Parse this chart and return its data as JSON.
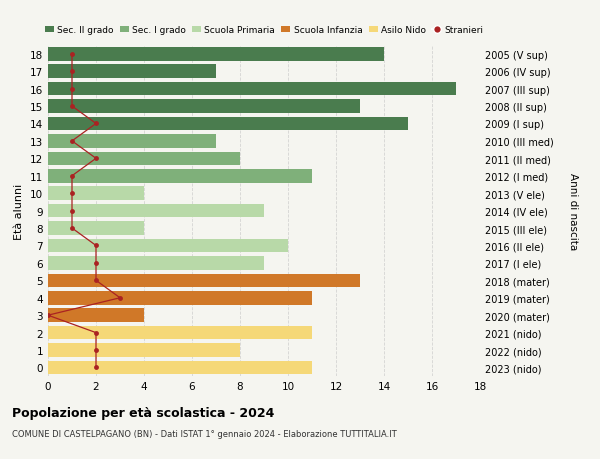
{
  "ages": [
    0,
    1,
    2,
    3,
    4,
    5,
    6,
    7,
    8,
    9,
    10,
    11,
    12,
    13,
    14,
    15,
    16,
    17,
    18
  ],
  "right_labels": [
    "2023 (nido)",
    "2022 (nido)",
    "2021 (nido)",
    "2020 (mater)",
    "2019 (mater)",
    "2018 (mater)",
    "2017 (I ele)",
    "2016 (II ele)",
    "2015 (III ele)",
    "2014 (IV ele)",
    "2013 (V ele)",
    "2012 (I med)",
    "2011 (II med)",
    "2010 (III med)",
    "2009 (I sup)",
    "2008 (II sup)",
    "2007 (III sup)",
    "2006 (IV sup)",
    "2005 (V sup)"
  ],
  "bar_values": [
    11,
    8,
    11,
    4,
    11,
    13,
    9,
    10,
    4,
    9,
    4,
    11,
    8,
    7,
    15,
    13,
    17,
    7,
    14
  ],
  "bar_colors": [
    "#f5d878",
    "#f5d878",
    "#f5d878",
    "#d07828",
    "#d07828",
    "#d07828",
    "#b8d9a8",
    "#b8d9a8",
    "#b8d9a8",
    "#b8d9a8",
    "#b8d9a8",
    "#7fb07a",
    "#7fb07a",
    "#7fb07a",
    "#4a7c4e",
    "#4a7c4e",
    "#4a7c4e",
    "#4a7c4e",
    "#4a7c4e"
  ],
  "stranieri_values": [
    2,
    2,
    2,
    0,
    3,
    2,
    2,
    2,
    1,
    1,
    1,
    1,
    2,
    1,
    2,
    1,
    1,
    1,
    1
  ],
  "legend_labels": [
    "Sec. II grado",
    "Sec. I grado",
    "Scuola Primaria",
    "Scuola Infanzia",
    "Asilo Nido",
    "Stranieri"
  ],
  "legend_colors": [
    "#4a7c4e",
    "#7fb07a",
    "#b8d9a8",
    "#d07828",
    "#f5d878",
    "#aa2222"
  ],
  "ylabel_left": "Età alunni",
  "ylabel_right": "Anni di nascita",
  "xlim": [
    0,
    18
  ],
  "xticks": [
    0,
    2,
    4,
    6,
    8,
    10,
    12,
    14,
    16,
    18
  ],
  "ylim": [
    -0.5,
    18.5
  ],
  "title": "Popolazione per età scolastica - 2024",
  "subtitle": "COMUNE DI CASTELPAGANO (BN) - Dati ISTAT 1° gennaio 2024 - Elaborazione TUTTITALIA.IT",
  "bg_color": "#f5f5f0",
  "grid_color": "#cccccc"
}
